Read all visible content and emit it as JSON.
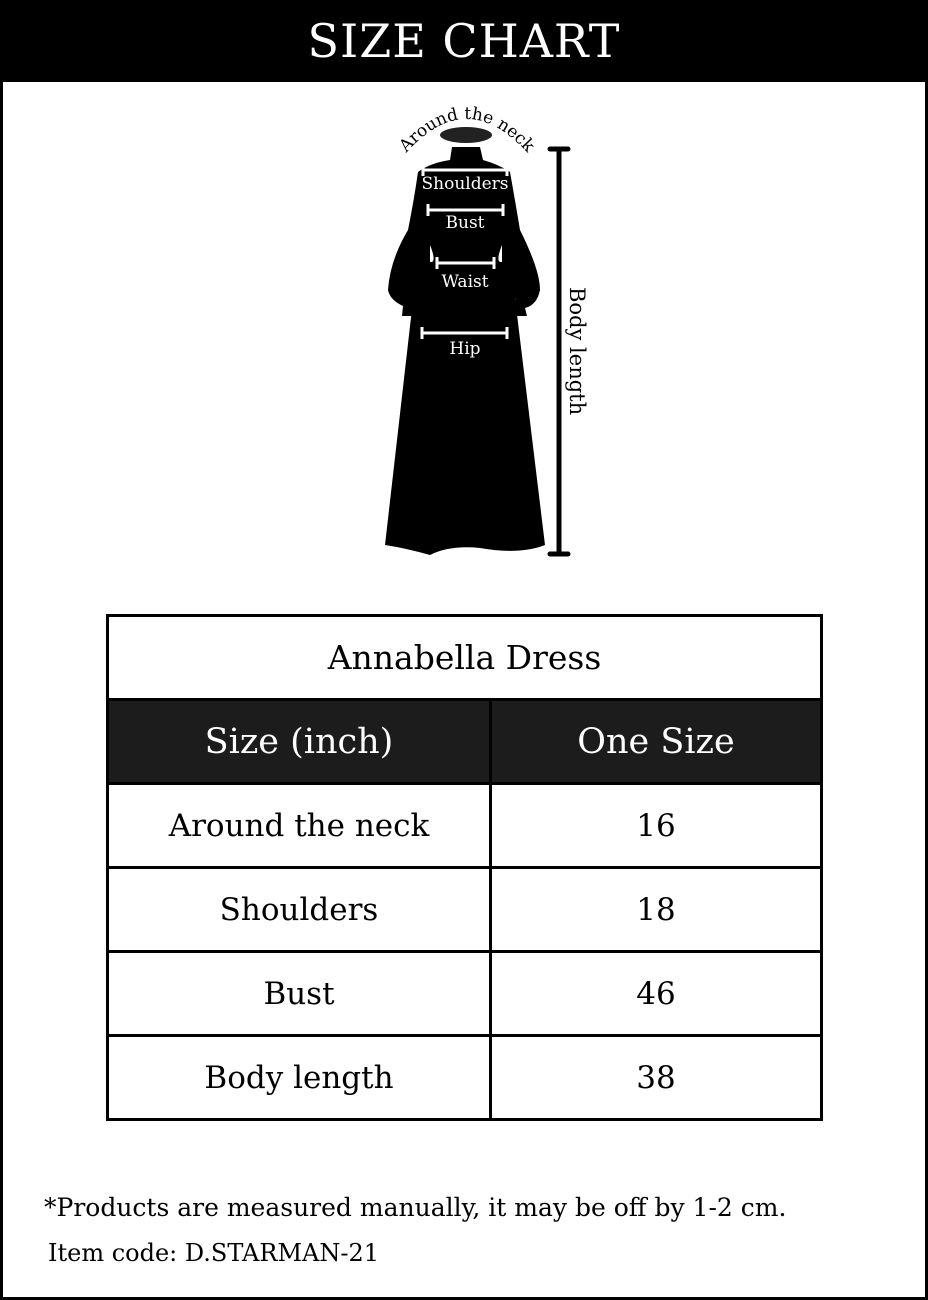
{
  "header": {
    "title": "SIZE CHART"
  },
  "diagram": {
    "labels": {
      "neck": "Around the neck",
      "shoulders": "Shoulders",
      "bust": "Bust",
      "waist": "Waist",
      "hip": "Hip",
      "body_length": "Body length"
    }
  },
  "table": {
    "title": "Annabella Dress",
    "columns": [
      "Size (inch)",
      "One Size"
    ],
    "rows": [
      {
        "label": "Around the neck",
        "value": "16"
      },
      {
        "label": "Shoulders",
        "value": "18"
      },
      {
        "label": "Bust",
        "value": "46"
      },
      {
        "label": "Body length",
        "value": "38"
      }
    ]
  },
  "footer": {
    "note": "*Products are measured manually, it may be off by 1-2 cm.",
    "item_code": "Item code: D.STARMAN-21"
  }
}
